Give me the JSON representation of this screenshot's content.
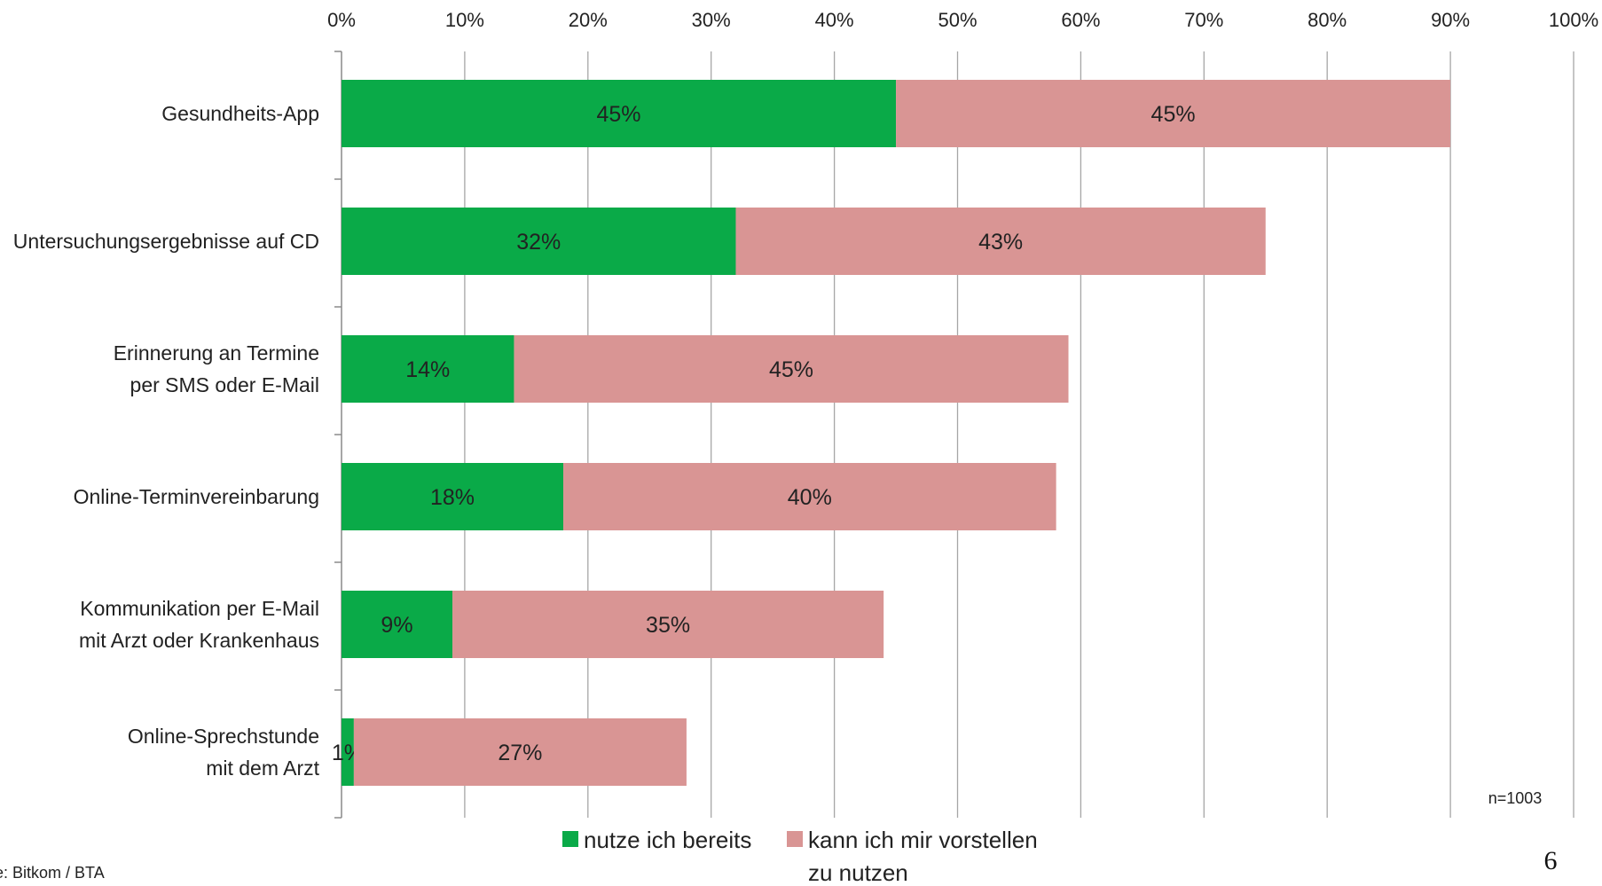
{
  "chart_data": {
    "type": "bar",
    "orientation": "horizontal",
    "stacked": true,
    "xlim": [
      0,
      100
    ],
    "x_ticks": [
      "0%",
      "10%",
      "20%",
      "30%",
      "40%",
      "50%",
      "60%",
      "70%",
      "80%",
      "90%",
      "100%"
    ],
    "grid": true,
    "legend_position": "bottom",
    "categories": [
      [
        "Gesundheits-App"
      ],
      [
        "Untersuchungsergebnisse auf CD"
      ],
      [
        "Erinnerung an Termine",
        "per SMS oder E-Mail"
      ],
      [
        "Online-Terminvereinbarung"
      ],
      [
        "Kommunikation per E-Mail",
        "mit Arzt oder Krankenhaus"
      ],
      [
        "Online-Sprechstunde",
        "mit dem Arzt"
      ]
    ],
    "series": [
      {
        "name": "nutze ich bereits",
        "color": "#0aaa48",
        "values": [
          45,
          32,
          14,
          18,
          9,
          1
        ],
        "labels": [
          "45%",
          "32%",
          "14%",
          "18%",
          "9%",
          "1%"
        ]
      },
      {
        "name": "kann ich mir vorstellen zu nutzen",
        "name_lines": [
          "kann ich mir vorstellen",
          "zu nutzen"
        ],
        "color": "#d99594",
        "values": [
          45,
          43,
          45,
          40,
          35,
          27
        ],
        "labels": [
          "45%",
          "43%",
          "45%",
          "40%",
          "35%",
          "27%"
        ]
      }
    ],
    "annotation": "n=1003"
  },
  "source_text": "e: Bitkom / BTA",
  "page_number": "6"
}
